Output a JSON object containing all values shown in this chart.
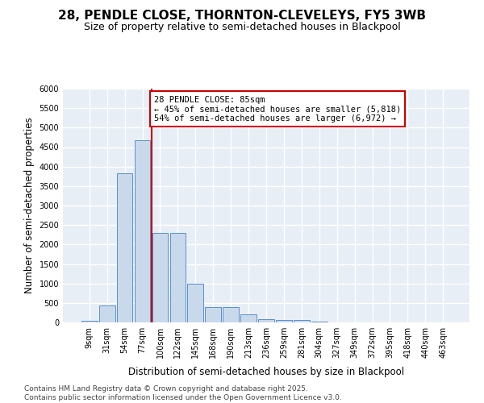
{
  "title_line1": "28, PENDLE CLOSE, THORNTON-CLEVELEYS, FY5 3WB",
  "title_line2": "Size of property relative to semi-detached houses in Blackpool",
  "xlabel": "Distribution of semi-detached houses by size in Blackpool",
  "ylabel": "Number of semi-detached properties",
  "bar_labels": [
    "9sqm",
    "31sqm",
    "54sqm",
    "77sqm",
    "100sqm",
    "122sqm",
    "145sqm",
    "168sqm",
    "190sqm",
    "213sqm",
    "236sqm",
    "259sqm",
    "281sqm",
    "304sqm",
    "327sqm",
    "349sqm",
    "372sqm",
    "395sqm",
    "418sqm",
    "440sqm",
    "463sqm"
  ],
  "bar_values": [
    50,
    430,
    3820,
    4680,
    2290,
    2290,
    990,
    400,
    390,
    200,
    90,
    70,
    70,
    30,
    0,
    0,
    0,
    0,
    0,
    0,
    0
  ],
  "bar_color": "#c9d9ec",
  "bar_edge_color": "#5b8fc9",
  "background_color": "#e8eef6",
  "grid_color": "#ffffff",
  "ylim_max": 6000,
  "ytick_step": 500,
  "vline_x": 3.5,
  "vline_color": "#cc0000",
  "annotation_title": "28 PENDLE CLOSE: 85sqm",
  "annotation_line1": "← 45% of semi-detached houses are smaller (5,818)",
  "annotation_line2": "54% of semi-detached houses are larger (6,972) →",
  "ann_box_facecolor": "#ffffff",
  "ann_box_edgecolor": "#cc0000",
  "footer_line1": "Contains HM Land Registry data © Crown copyright and database right 2025.",
  "footer_line2": "Contains public sector information licensed under the Open Government Licence v3.0."
}
